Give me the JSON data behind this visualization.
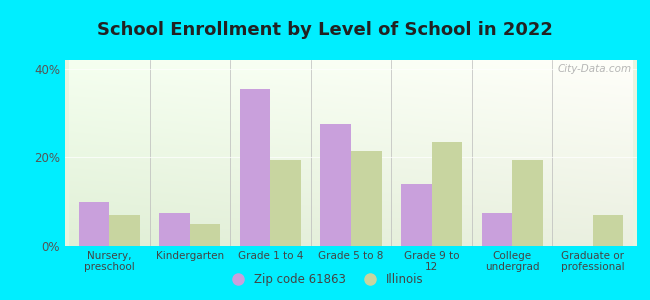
{
  "title": "School Enrollment by Level of School in 2022",
  "categories": [
    "Nursery,\npreschool",
    "Kindergarten",
    "Grade 1 to 4",
    "Grade 5 to 8",
    "Grade 9 to\n12",
    "College\nundergrad",
    "Graduate or\nprofessional"
  ],
  "zip_values": [
    10.0,
    7.5,
    35.5,
    27.5,
    14.0,
    7.5,
    0.0
  ],
  "illinois_values": [
    7.0,
    5.0,
    19.5,
    21.5,
    23.5,
    19.5,
    7.0
  ],
  "zip_color": "#c9a0dc",
  "illinois_color": "#c8d5a0",
  "background_outer": "#00eeff",
  "ylim": [
    0,
    42
  ],
  "yticks": [
    0,
    20,
    40
  ],
  "ytick_labels": [
    "0%",
    "20%",
    "40%"
  ],
  "zip_label": "Zip code 61863",
  "illinois_label": "Illinois",
  "watermark": "City-Data.com",
  "title_fontsize": 13,
  "bar_width": 0.38
}
